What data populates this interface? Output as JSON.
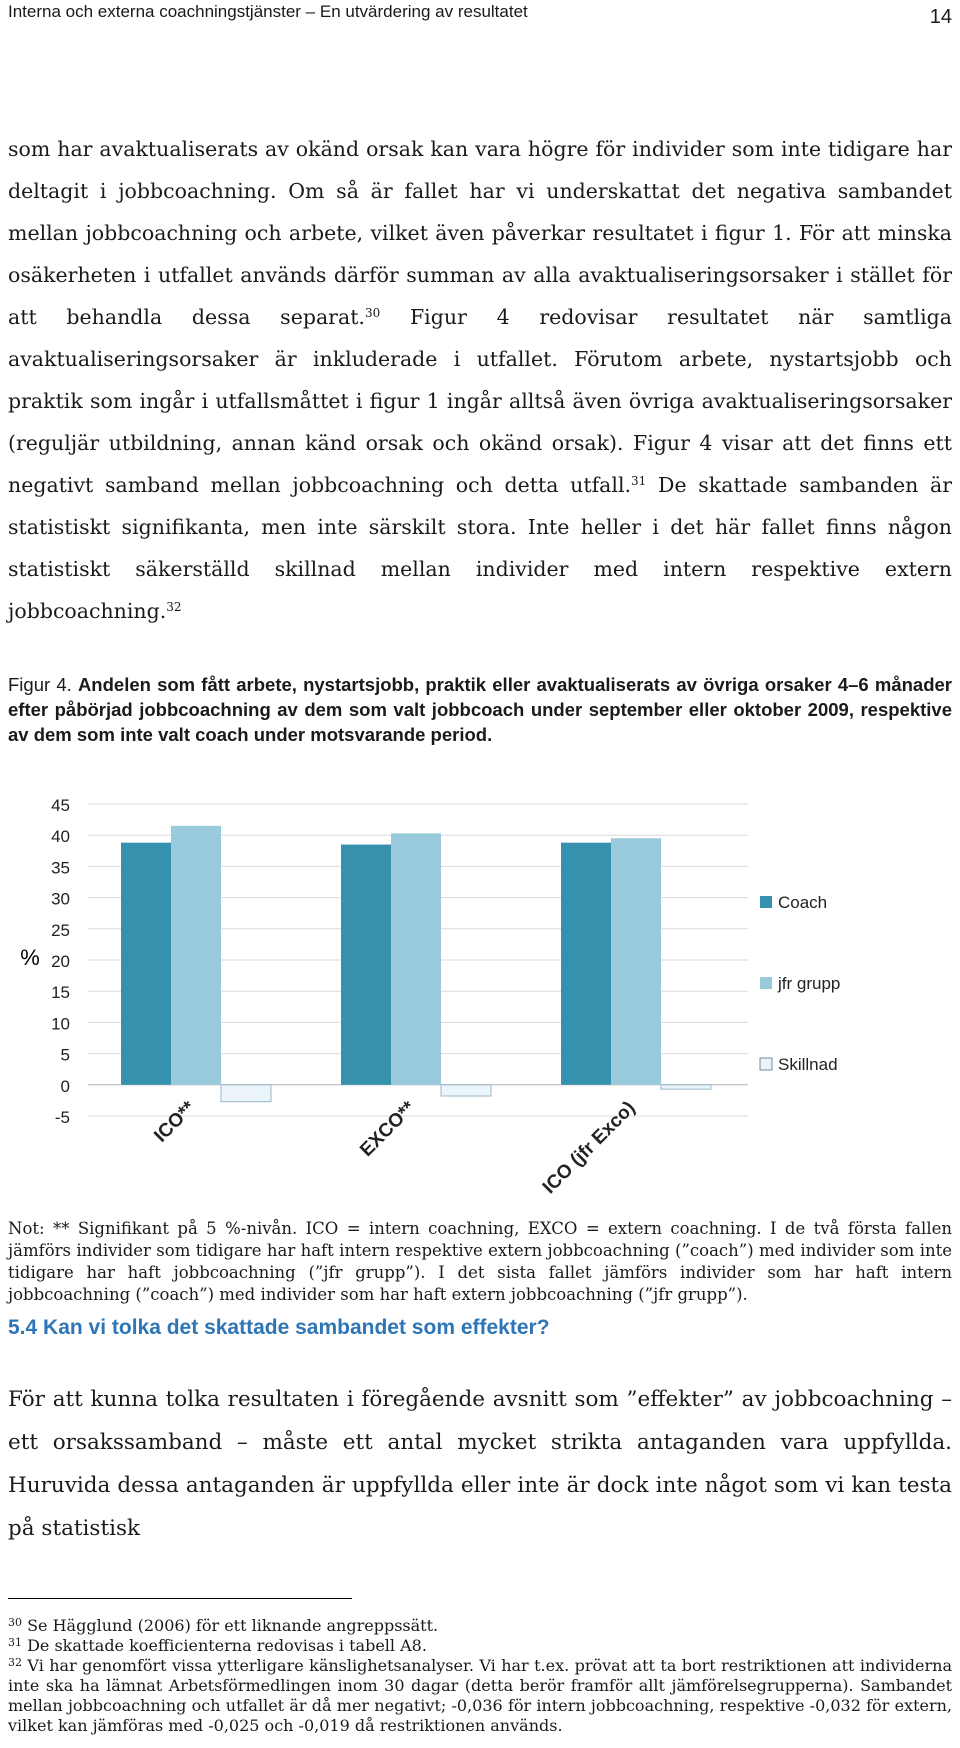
{
  "header": {
    "title": "Interna och externa coachningstjänster – En utvärdering av resultatet",
    "page_number": "14"
  },
  "body_paragraph_1": {
    "part1": "som har avaktualiserats av okänd orsak kan vara högre för individer som inte tidigare har deltagit i jobbcoachning. Om så är fallet har vi underskattat det negativa sambandet mellan jobbcoachning och arbete, vilket även påverkar resultatet i figur 1. För att minska osäkerheten i utfallet används därför summan av alla avaktualiseringsorsaker i stället för att behandla dessa separat.",
    "ref1": "30",
    "part2": " Figur 4 redovisar resultatet när samtliga avaktualiseringsorsaker är inkluderade i utfallet. Förutom arbete, nystartsjobb och praktik som ingår i utfallsmåttet i figur 1 ingår alltså även övriga avaktualiseringsorsaker (reguljär utbildning, annan känd orsak och okänd orsak). Figur 4 visar att det finns ett negativt samband mellan jobbcoachning och detta utfall.",
    "ref2": "31",
    "part3": " De skattade sambanden är statistiskt signifikanta, men inte särskilt stora. Inte heller i det här fallet finns någon statistiskt säkerställd skillnad mellan individer med intern respektive extern jobbcoachning.",
    "ref3": "32"
  },
  "figure": {
    "label": "Figur 4. ",
    "caption": "Andelen som fått arbete, nystartsjobb, praktik eller avaktualiserats av övriga orsaker 4–6 månader efter påbörjad jobbcoachning av dem som valt jobbcoach under september eller oktober 2009, respektive av dem som inte valt coach under motsvarande period."
  },
  "chart_data": {
    "type": "bar",
    "categories": [
      "ICO**",
      "EXCO**",
      "ICO (jfr Exco)"
    ],
    "series": [
      {
        "name": "Coach",
        "values": [
          38.8,
          38.5,
          38.8
        ],
        "color": "#3591ae"
      },
      {
        "name": "jfr grupp",
        "values": [
          41.5,
          40.3,
          39.5
        ],
        "color": "#98cadb"
      },
      {
        "name": "Skillnad",
        "values": [
          -2.7,
          -1.8,
          -0.7
        ],
        "color": "#eaf4fa"
      }
    ],
    "ylabel": "%",
    "ylim": [
      -5,
      45
    ],
    "yticks": [
      "45",
      "40",
      "35",
      "30",
      "25",
      "20",
      "15",
      "10",
      "5",
      "0",
      "-5"
    ],
    "grid": true,
    "legend": "right"
  },
  "note": {
    "text": "Not: ** Signifikant på 5 %-nivån. ICO = intern coachning, EXCO = extern coachning. I de två första fallen jämförs individer som tidigare har haft intern respektive extern jobbcoachning (”coach”) med individer som inte tidigare har haft jobbcoachning (”jfr grupp”). I det sista fallet jämförs individer som har haft intern jobbcoachning (”coach”) med individer som har haft extern jobbcoachning (”jfr grupp”)."
  },
  "section": {
    "heading": "5.4 Kan vi tolka det skattade sambandet som effekter?",
    "paragraph": "För att kunna tolka resultaten i föregående avsnitt som ”effekter” av jobbcoachning – ett orsakssamband – måste ett antal mycket strikta antaganden vara uppfyllda. Huruvida dessa antaganden är uppfyllda eller inte är dock inte något som vi kan testa på statistisk"
  },
  "footnotes": [
    {
      "num": "30",
      "text": " Se Hägglund (2006) för ett liknande angreppssätt."
    },
    {
      "num": "31",
      "text": " De skattade koefficienterna redovisas i tabell A8."
    },
    {
      "num": "32",
      "text": " Vi har genomfört vissa ytterligare känslighetsanalyser. Vi har t.ex. prövat att ta bort restriktionen att individerna inte ska ha lämnat Arbetsförmedlingen inom 30 dagar (detta berör framför allt jämförelsegrupperna). Sambandet mellan jobbcoachning och utfallet är då mer negativt; -0,036 för intern jobbcoachning, respektive -0,032 för extern, vilket kan jämföras med -0,025 och -0,019 då restriktionen används."
    }
  ]
}
